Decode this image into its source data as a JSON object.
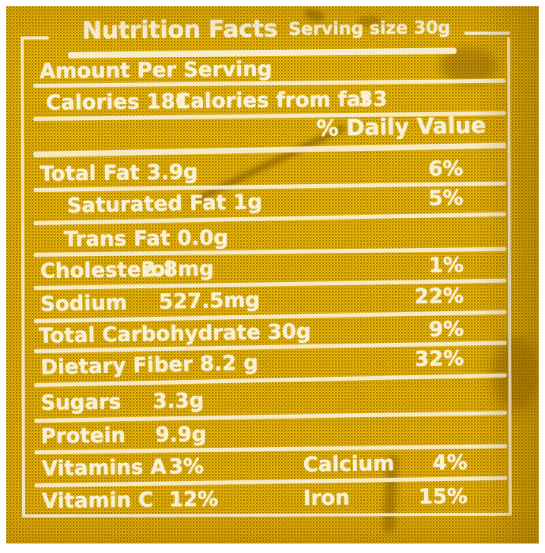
{
  "label": {
    "title": "Nutrition Facts",
    "serving_size": "Serving size 30g",
    "amount_per_serving": "Amount Per Serving",
    "calories_row": {
      "left": "Calories 181",
      "middle": "Calories from fat",
      "value": "33"
    },
    "daily_value_header": "% Daily Value",
    "nutrient_rows": [
      {
        "label": "Total Fat 3.9g",
        "amount": "",
        "dv": "6%"
      },
      {
        "label": "Saturated Fat 1g",
        "amount": "",
        "dv": "5%"
      },
      {
        "label": "Trans Fat 0.0g",
        "amount": "",
        "dv": ""
      },
      {
        "label": "Cholesterol",
        "amount": "2.8mg",
        "dv": "1%"
      },
      {
        "label": "Sodium",
        "amount": "527.5mg",
        "dv": "22%"
      },
      {
        "label": "Total Carbohydrate 30g",
        "amount": "",
        "dv": "9%"
      },
      {
        "label": "Dietary Fiber 8.2 g",
        "amount": "",
        "dv": "32%"
      },
      {
        "label": "Sugars",
        "amount": "3.3g",
        "dv": ""
      },
      {
        "label": "Protein",
        "amount": "9.9g",
        "dv": ""
      }
    ],
    "vitamin_rows": [
      {
        "label1": "Vitamins A",
        "value1": "3%",
        "label2": "Calcium",
        "value2": "4%"
      },
      {
        "label1": "Vitamin C",
        "value1": "12%",
        "label2": "Iron",
        "value2": "15%"
      }
    ],
    "colors": {
      "package_yellow": "#eec308",
      "halftone_dot": "#6f4e06",
      "label_ink": "#f8f0d4"
    }
  }
}
